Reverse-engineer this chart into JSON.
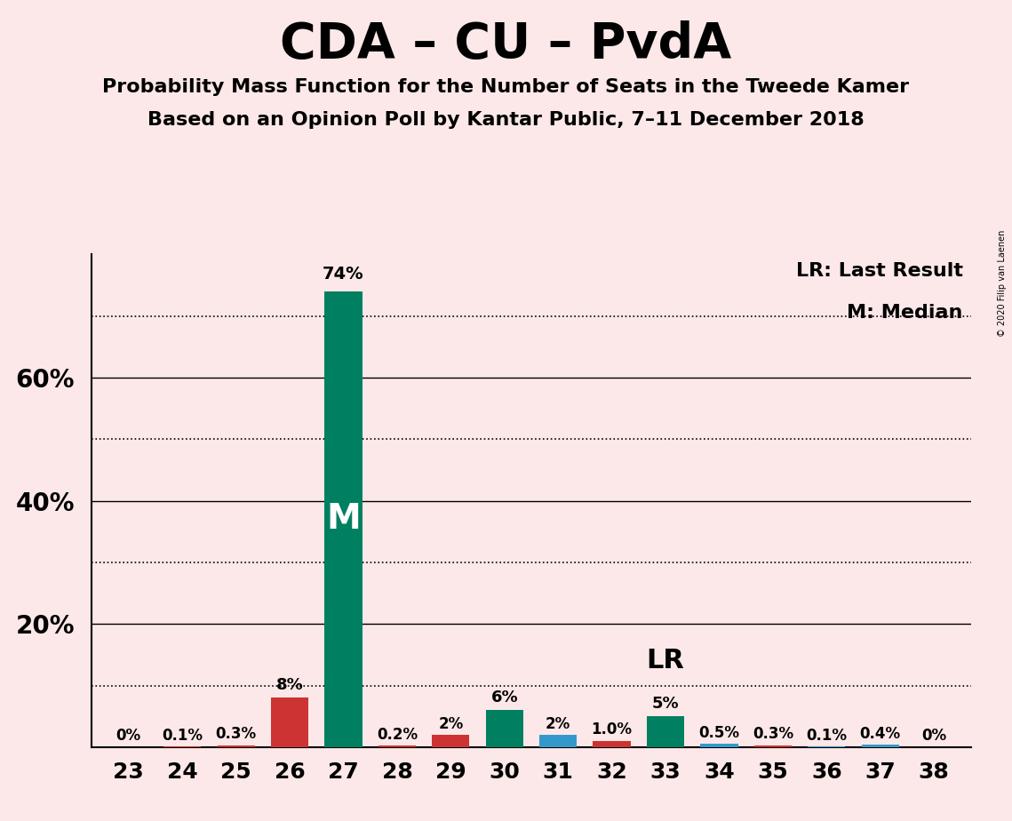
{
  "title": "CDA – CU – PvdA",
  "subtitle1": "Probability Mass Function for the Number of Seats in the Tweede Kamer",
  "subtitle2": "Based on an Opinion Poll by Kantar Public, 7–11 December 2018",
  "copyright": "© 2020 Filip van Laenen",
  "seats": [
    23,
    24,
    25,
    26,
    27,
    28,
    29,
    30,
    31,
    32,
    33,
    34,
    35,
    36,
    37,
    38
  ],
  "values": [
    0.0,
    0.1,
    0.3,
    8.0,
    74.0,
    0.2,
    2.0,
    6.0,
    2.0,
    1.0,
    5.0,
    0.5,
    0.3,
    0.1,
    0.4,
    0.0
  ],
  "labels": [
    "0%",
    "0.1%",
    "0.3%",
    "8%",
    "74%",
    "0.2%",
    "2%",
    "6%",
    "2%",
    "1.0%",
    "5%",
    "0.5%",
    "0.3%",
    "0.1%",
    "0.4%",
    "0%"
  ],
  "colors": [
    "#3399cc",
    "#cc3333",
    "#cc3333",
    "#cc3333",
    "#008060",
    "#cc3333",
    "#cc3333",
    "#008060",
    "#3399cc",
    "#cc3333",
    "#008060",
    "#3399cc",
    "#cc3333",
    "#3399cc",
    "#3399cc",
    "#3399cc"
  ],
  "median_seat": 27,
  "lr_seat": 33,
  "lr_label": "LR",
  "legend_lr": "LR: Last Result",
  "legend_m": "M: Median",
  "background_color": "#fce8e8",
  "ylim_max": 80,
  "solid_yticks": [
    20,
    40,
    60
  ],
  "dotted_yticks": [
    10,
    30,
    50,
    70
  ],
  "bar_width": 0.7
}
